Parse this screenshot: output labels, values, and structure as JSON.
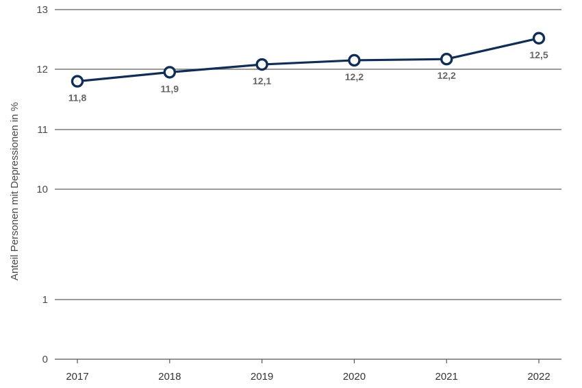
{
  "chart_data": {
    "type": "line",
    "title": "",
    "xlabel": "",
    "ylabel": "Anteil Personen mit Depressionen in %",
    "x": [
      "2017",
      "2018",
      "2019",
      "2020",
      "2021",
      "2022"
    ],
    "series": [
      {
        "values": [
          11.8,
          11.95,
          12.08,
          12.15,
          12.17,
          12.52
        ],
        "labels": [
          "11,8",
          "11,9",
          "12,1",
          "12,2",
          "12,2",
          "12,5"
        ],
        "color": "#0f2d55"
      }
    ],
    "y_scale": "broken",
    "y_ticks": [
      0,
      1,
      10,
      11,
      12,
      13
    ],
    "y_tick_labels": [
      "0",
      "1",
      "10",
      "11",
      "12",
      "13"
    ],
    "ylim": [
      0,
      13
    ],
    "grid": true,
    "label_positions": [
      "below",
      "below",
      "below",
      "below",
      "below",
      "below"
    ]
  }
}
